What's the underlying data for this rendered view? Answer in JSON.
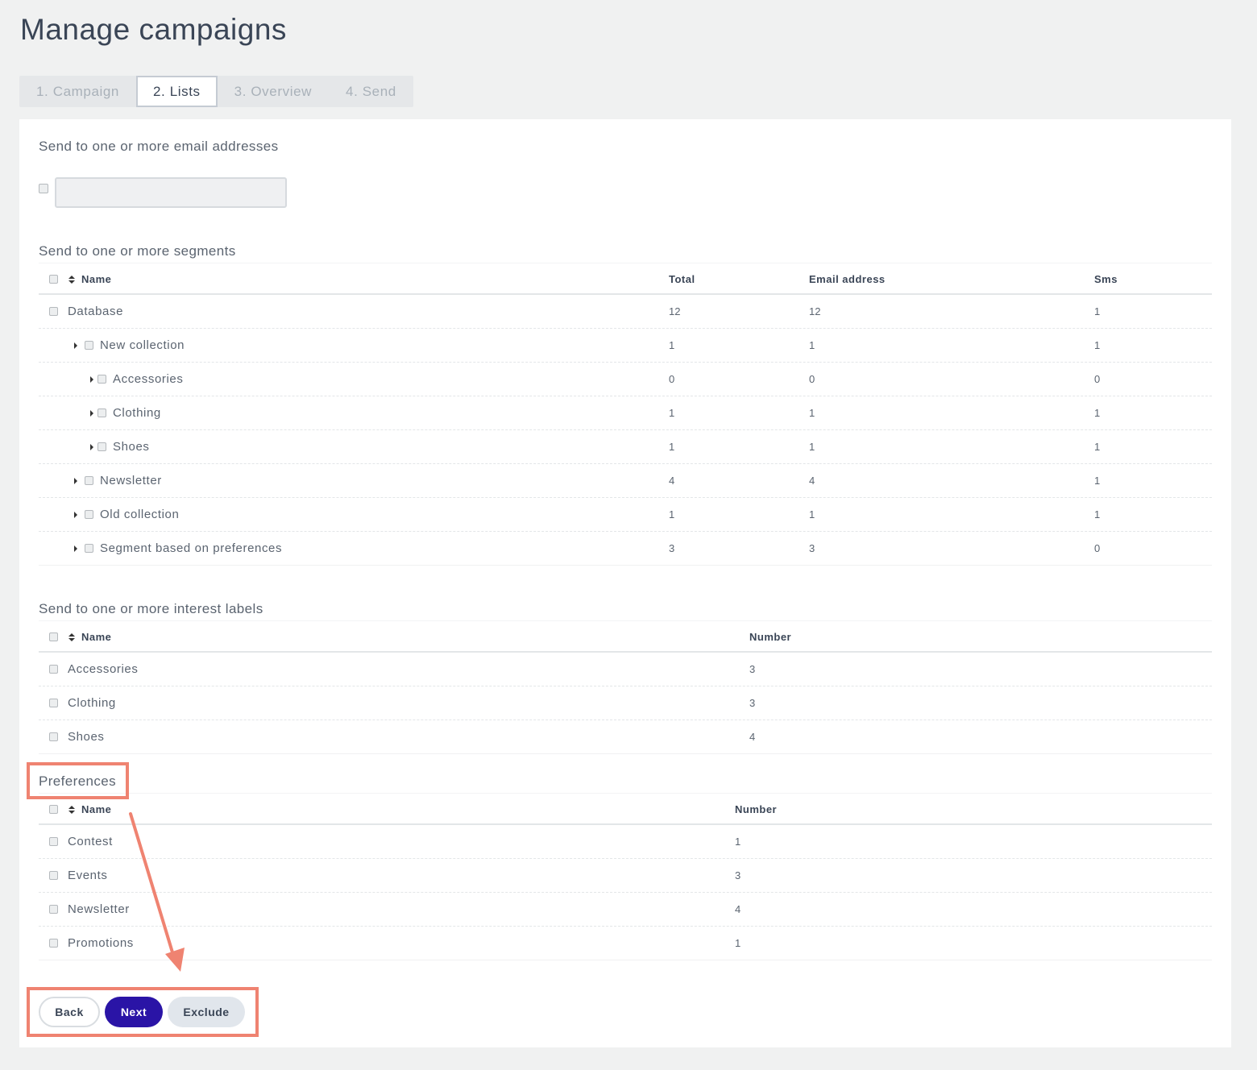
{
  "page": {
    "title": "Manage campaigns"
  },
  "tabs": [
    {
      "label": "1. Campaign",
      "active": false
    },
    {
      "label": "2. Lists",
      "active": true
    },
    {
      "label": "3. Overview",
      "active": false
    },
    {
      "label": "4. Send",
      "active": false
    }
  ],
  "email_section": {
    "title": "Send to one or more email addresses",
    "input_value": "",
    "input_placeholder": ""
  },
  "segments": {
    "title": "Send to one or more segments",
    "columns": [
      "Name",
      "Total",
      "Email address",
      "Sms"
    ],
    "rows": [
      {
        "name": "Database",
        "total": "12",
        "email": "12",
        "sms": "1"
      },
      {
        "name": "New collection",
        "total": "1",
        "email": "1",
        "sms": "1"
      },
      {
        "name": "Accessories",
        "total": "0",
        "email": "0",
        "sms": "0"
      },
      {
        "name": "Clothing",
        "total": "1",
        "email": "1",
        "sms": "1"
      },
      {
        "name": "Shoes",
        "total": "1",
        "email": "1",
        "sms": "1"
      },
      {
        "name": "Newsletter",
        "total": "4",
        "email": "4",
        "sms": "1"
      },
      {
        "name": "Old collection",
        "total": "1",
        "email": "1",
        "sms": "1"
      },
      {
        "name": "Segment based on preferences",
        "total": "3",
        "email": "3",
        "sms": "0"
      }
    ]
  },
  "interests": {
    "title": "Send to one or more interest labels",
    "columns": [
      "Name",
      "Number"
    ],
    "rows": [
      {
        "name": "Accessories",
        "number": "3"
      },
      {
        "name": "Clothing",
        "number": "3"
      },
      {
        "name": "Shoes",
        "number": "4"
      }
    ]
  },
  "preferences": {
    "title": "Preferences",
    "columns": [
      "Name",
      "Number"
    ],
    "rows": [
      {
        "name": "Contest",
        "number": "1"
      },
      {
        "name": "Events",
        "number": "3"
      },
      {
        "name": "Newsletter",
        "number": "4"
      },
      {
        "name": "Promotions",
        "number": "1"
      }
    ]
  },
  "buttons": {
    "back": "Back",
    "next": "Next",
    "exclude": "Exclude"
  },
  "colors": {
    "accent": "#2a14a6",
    "highlight": "#ef8371"
  },
  "icons": [
    "sort-icon",
    "caret-right-icon",
    "arrow-annotation-icon"
  ]
}
